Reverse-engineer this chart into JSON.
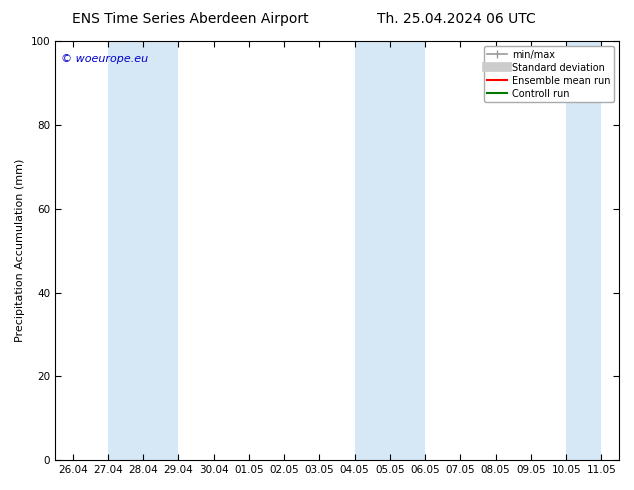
{
  "title_left": "ENS Time Series Aberdeen Airport",
  "title_right": "Th. 25.04.2024 06 UTC",
  "ylabel": "Precipitation Accumulation (mm)",
  "ylim": [
    0,
    100
  ],
  "yticks": [
    0,
    20,
    40,
    60,
    80,
    100
  ],
  "watermark": "© woeurope.eu",
  "watermark_color": "#0000cc",
  "background_color": "#ffffff",
  "plot_bg_color": "#ffffff",
  "shaded_regions": [
    {
      "x_start": "27.04",
      "x_end": "29.04",
      "color": "#d6e8f5"
    },
    {
      "x_start": "04.05",
      "x_end": "06.05",
      "color": "#d6e8f5"
    },
    {
      "x_start": "10.05",
      "x_end": "11.05",
      "color": "#d6e8f5"
    }
  ],
  "x_tick_labels": [
    "26.04",
    "27.04",
    "28.04",
    "29.04",
    "30.04",
    "01.05",
    "02.05",
    "03.05",
    "04.05",
    "05.05",
    "06.05",
    "07.05",
    "08.05",
    "09.05",
    "10.05",
    "11.05"
  ],
  "legend_entries": [
    {
      "label": "min/max",
      "color": "#999999",
      "lw": 1.2,
      "ls": "-"
    },
    {
      "label": "Standard deviation",
      "color": "#cccccc",
      "lw": 7,
      "ls": "-"
    },
    {
      "label": "Ensemble mean run",
      "color": "#ff0000",
      "lw": 1.5,
      "ls": "-"
    },
    {
      "label": "Controll run",
      "color": "#007700",
      "lw": 1.5,
      "ls": "-"
    }
  ],
  "title_fontsize": 10,
  "axis_label_fontsize": 8,
  "tick_fontsize": 7.5,
  "watermark_fontsize": 8
}
